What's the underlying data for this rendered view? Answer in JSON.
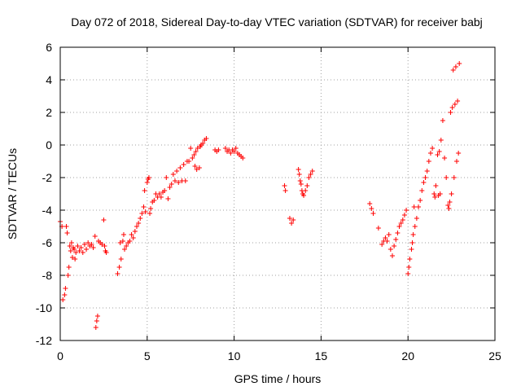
{
  "chart_data": {
    "type": "scatter",
    "title": "Day 072 of 2018, Sidereal Day-to-day VTEC variation (SDTVAR) for receiver babj",
    "xlabel": "GPS time / hours",
    "ylabel": "SDTVAR / TECUs",
    "xlim": [
      0,
      25
    ],
    "ylim": [
      -12,
      6
    ],
    "xticks": [
      0,
      5,
      10,
      15,
      20,
      25
    ],
    "yticks": [
      -12,
      -10,
      -8,
      -6,
      -4,
      -2,
      0,
      2,
      4,
      6
    ],
    "grid": true,
    "marker": "+",
    "marker_color": "#ff0000",
    "series": [
      {
        "name": "SDTVAR",
        "segments": [
          [
            [
              0.0,
              -4.7
            ],
            [
              0.1,
              -5.0
            ],
            [
              0.15,
              -9.5
            ],
            [
              0.25,
              -9.2
            ],
            [
              0.3,
              -8.8
            ],
            [
              0.35,
              -5.0
            ],
            [
              0.4,
              -5.4
            ],
            [
              0.45,
              -8.0
            ],
            [
              0.5,
              -7.5
            ],
            [
              0.55,
              -6.2
            ],
            [
              0.6,
              -6.5
            ],
            [
              0.65,
              -6.0
            ],
            [
              0.7,
              -6.9
            ],
            [
              0.75,
              -6.3
            ],
            [
              0.8,
              -6.4
            ],
            [
              0.85,
              -7.0
            ],
            [
              0.9,
              -6.6
            ],
            [
              1.0,
              -6.2
            ],
            [
              1.1,
              -6.5
            ],
            [
              1.2,
              -6.3
            ],
            [
              1.3,
              -6.6
            ],
            [
              1.4,
              -6.1
            ],
            [
              1.5,
              -6.4
            ],
            [
              1.6,
              -6.0
            ],
            [
              1.7,
              -6.2
            ],
            [
              1.8,
              -6.1
            ],
            [
              1.9,
              -6.3
            ],
            [
              2.0,
              -5.6
            ],
            [
              2.05,
              -11.2
            ],
            [
              2.1,
              -10.8
            ],
            [
              2.15,
              -10.5
            ],
            [
              2.2,
              -5.9
            ],
            [
              2.3,
              -6.0
            ],
            [
              2.4,
              -6.1
            ],
            [
              2.5,
              -4.6
            ],
            [
              2.55,
              -6.2
            ],
            [
              2.6,
              -6.5
            ],
            [
              2.65,
              -6.6
            ]
          ],
          [
            [
              3.3,
              -7.9
            ],
            [
              3.4,
              -7.5
            ],
            [
              3.45,
              -6.0
            ],
            [
              3.5,
              -7.0
            ],
            [
              3.6,
              -5.9
            ],
            [
              3.65,
              -5.5
            ],
            [
              3.7,
              -6.4
            ],
            [
              3.8,
              -6.2
            ],
            [
              3.9,
              -6.0
            ],
            [
              4.0,
              -5.9
            ],
            [
              4.1,
              -5.5
            ],
            [
              4.2,
              -5.7
            ],
            [
              4.3,
              -5.3
            ],
            [
              4.4,
              -5.0
            ],
            [
              4.5,
              -4.8
            ],
            [
              4.6,
              -4.5
            ],
            [
              4.7,
              -4.2
            ],
            [
              4.8,
              -3.8
            ],
            [
              4.85,
              -2.8
            ],
            [
              4.9,
              -4.1
            ],
            [
              5.0,
              -2.3
            ],
            [
              5.05,
              -2.1
            ],
            [
              5.1,
              -2.0
            ],
            [
              5.15,
              -4.2
            ],
            [
              5.2,
              -3.9
            ],
            [
              5.3,
              -3.5
            ],
            [
              5.4,
              -3.4
            ],
            [
              5.5,
              -3.0
            ],
            [
              5.6,
              -3.2
            ],
            [
              5.7,
              -3.0
            ],
            [
              5.8,
              -3.2
            ],
            [
              5.9,
              -2.9
            ],
            [
              6.0,
              -2.8
            ],
            [
              6.1,
              -2.0
            ],
            [
              6.2,
              -3.3
            ],
            [
              6.3,
              -2.6
            ],
            [
              6.4,
              -2.4
            ],
            [
              6.5,
              -1.8
            ],
            [
              6.6,
              -2.2
            ],
            [
              6.7,
              -1.6
            ],
            [
              6.8,
              -2.3
            ],
            [
              6.9,
              -1.4
            ],
            [
              7.0,
              -2.2
            ],
            [
              7.1,
              -1.2
            ],
            [
              7.2,
              -2.2
            ],
            [
              7.3,
              -1.0
            ],
            [
              7.4,
              -1.0
            ],
            [
              7.5,
              -0.2
            ],
            [
              7.6,
              -0.8
            ],
            [
              7.7,
              -0.6
            ],
            [
              7.75,
              -1.3
            ],
            [
              7.8,
              -0.4
            ],
            [
              7.85,
              -1.5
            ],
            [
              7.9,
              -0.2
            ],
            [
              8.0,
              -1.4
            ],
            [
              8.05,
              -0.1
            ],
            [
              8.1,
              0.0
            ],
            [
              8.2,
              0.1
            ],
            [
              8.3,
              0.3
            ],
            [
              8.4,
              0.4
            ]
          ],
          [
            [
              8.9,
              -0.3
            ],
            [
              9.0,
              -0.4
            ],
            [
              9.1,
              -0.3
            ],
            [
              9.5,
              -0.2
            ],
            [
              9.6,
              -0.4
            ],
            [
              9.7,
              -0.3
            ],
            [
              9.8,
              -0.5
            ],
            [
              9.9,
              -0.3
            ],
            [
              10.0,
              -0.4
            ],
            [
              10.1,
              -0.2
            ],
            [
              10.2,
              -0.5
            ],
            [
              10.3,
              -0.6
            ],
            [
              10.4,
              -0.7
            ],
            [
              10.5,
              -0.8
            ]
          ],
          [
            [
              12.9,
              -2.5
            ],
            [
              12.95,
              -2.8
            ],
            [
              13.2,
              -4.5
            ],
            [
              13.3,
              -4.8
            ],
            [
              13.4,
              -4.6
            ],
            [
              13.7,
              -1.5
            ],
            [
              13.75,
              -1.8
            ],
            [
              13.8,
              -2.2
            ],
            [
              13.85,
              -2.4
            ],
            [
              13.9,
              -2.8
            ],
            [
              13.95,
              -3.0
            ],
            [
              14.0,
              -3.1
            ],
            [
              14.1,
              -2.8
            ],
            [
              14.2,
              -2.5
            ],
            [
              14.3,
              -2.0
            ],
            [
              14.4,
              -1.8
            ],
            [
              14.5,
              -1.6
            ]
          ],
          [
            [
              17.8,
              -3.6
            ],
            [
              17.9,
              -3.9
            ],
            [
              18.0,
              -4.2
            ],
            [
              18.3,
              -5.1
            ],
            [
              18.5,
              -6.1
            ],
            [
              18.6,
              -5.9
            ],
            [
              18.7,
              -5.7
            ],
            [
              18.8,
              -5.9
            ],
            [
              18.9,
              -5.5
            ],
            [
              19.0,
              -6.4
            ],
            [
              19.1,
              -6.8
            ],
            [
              19.2,
              -6.2
            ],
            [
              19.3,
              -5.8
            ],
            [
              19.4,
              -5.4
            ],
            [
              19.5,
              -5.0
            ],
            [
              19.6,
              -4.8
            ],
            [
              19.7,
              -4.6
            ],
            [
              19.8,
              -4.3
            ],
            [
              19.9,
              -4.0
            ],
            [
              20.0,
              -7.9
            ],
            [
              20.05,
              -7.5
            ],
            [
              20.1,
              -7.0
            ],
            [
              20.2,
              -6.4
            ],
            [
              20.25,
              -6.0
            ],
            [
              20.3,
              -5.5
            ],
            [
              20.35,
              -3.8
            ],
            [
              20.4,
              -5.0
            ],
            [
              20.5,
              -4.5
            ],
            [
              20.6,
              -3.8
            ],
            [
              20.7,
              -3.4
            ],
            [
              20.8,
              -2.8
            ],
            [
              20.9,
              -2.3
            ],
            [
              21.0,
              -2.0
            ],
            [
              21.1,
              -1.6
            ],
            [
              21.2,
              -1.0
            ],
            [
              21.3,
              -0.5
            ],
            [
              21.4,
              -0.2
            ],
            [
              21.5,
              -3.0
            ],
            [
              21.55,
              -3.2
            ],
            [
              21.6,
              -2.5
            ],
            [
              21.7,
              -0.6
            ],
            [
              21.75,
              -3.1
            ],
            [
              21.8,
              -0.4
            ],
            [
              21.85,
              -3.0
            ],
            [
              21.9,
              0.3
            ],
            [
              22.0,
              1.5
            ],
            [
              22.1,
              -0.8
            ],
            [
              22.2,
              -2.0
            ],
            [
              22.3,
              -3.7
            ],
            [
              22.35,
              -3.9
            ],
            [
              22.4,
              -3.5
            ],
            [
              22.45,
              2.0
            ],
            [
              22.5,
              -3.0
            ],
            [
              22.55,
              2.3
            ],
            [
              22.6,
              4.6
            ],
            [
              22.65,
              -2.0
            ],
            [
              22.7,
              2.5
            ],
            [
              22.75,
              4.8
            ],
            [
              22.8,
              -1.0
            ],
            [
              22.85,
              2.7
            ],
            [
              22.9,
              -0.5
            ],
            [
              22.95,
              5.0
            ]
          ]
        ]
      }
    ]
  }
}
